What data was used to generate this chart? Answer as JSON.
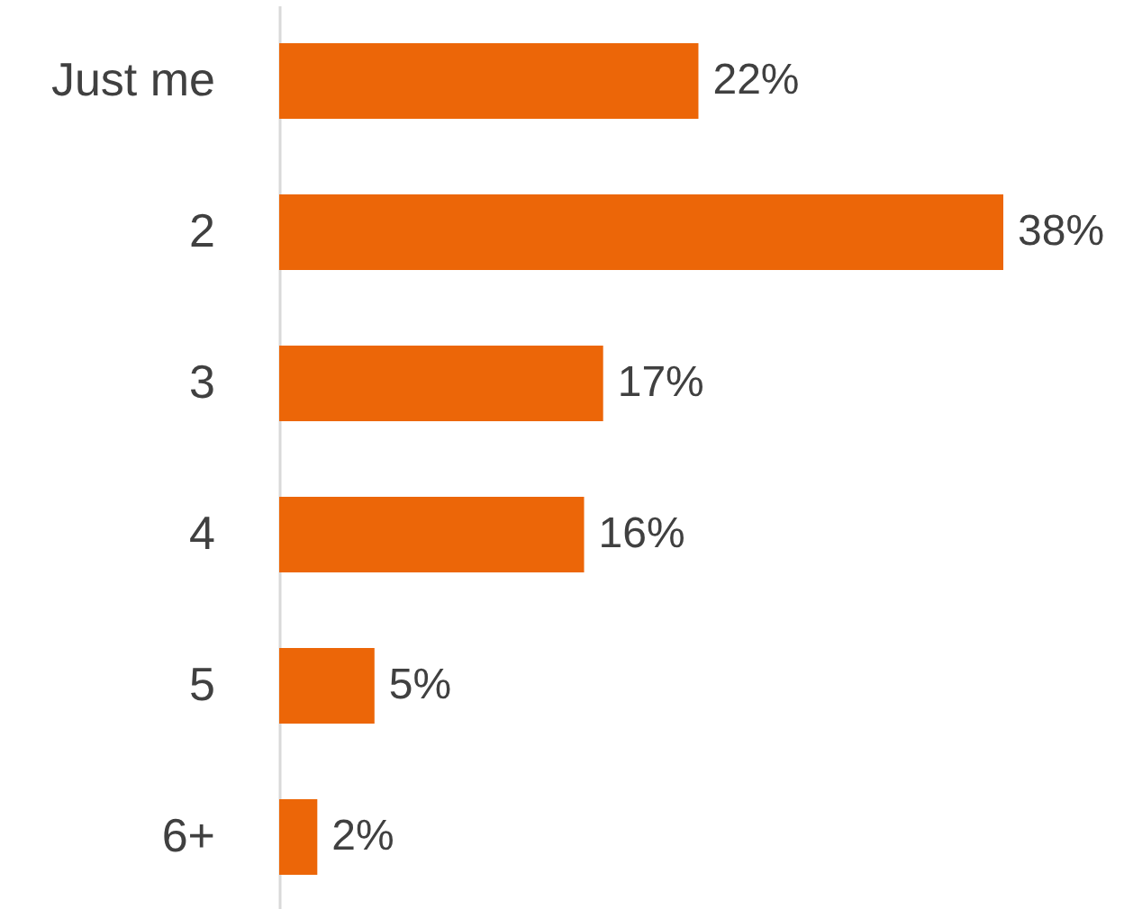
{
  "chart_data": {
    "type": "bar",
    "orientation": "horizontal",
    "categories": [
      "Just me",
      "2",
      "3",
      "4",
      "5",
      "6+"
    ],
    "values": [
      22,
      38,
      17,
      16,
      5,
      2
    ],
    "value_labels": [
      "22%",
      "38%",
      "17%",
      "16%",
      "5%",
      "2%"
    ],
    "color": "#ec6608",
    "grid": false
  }
}
